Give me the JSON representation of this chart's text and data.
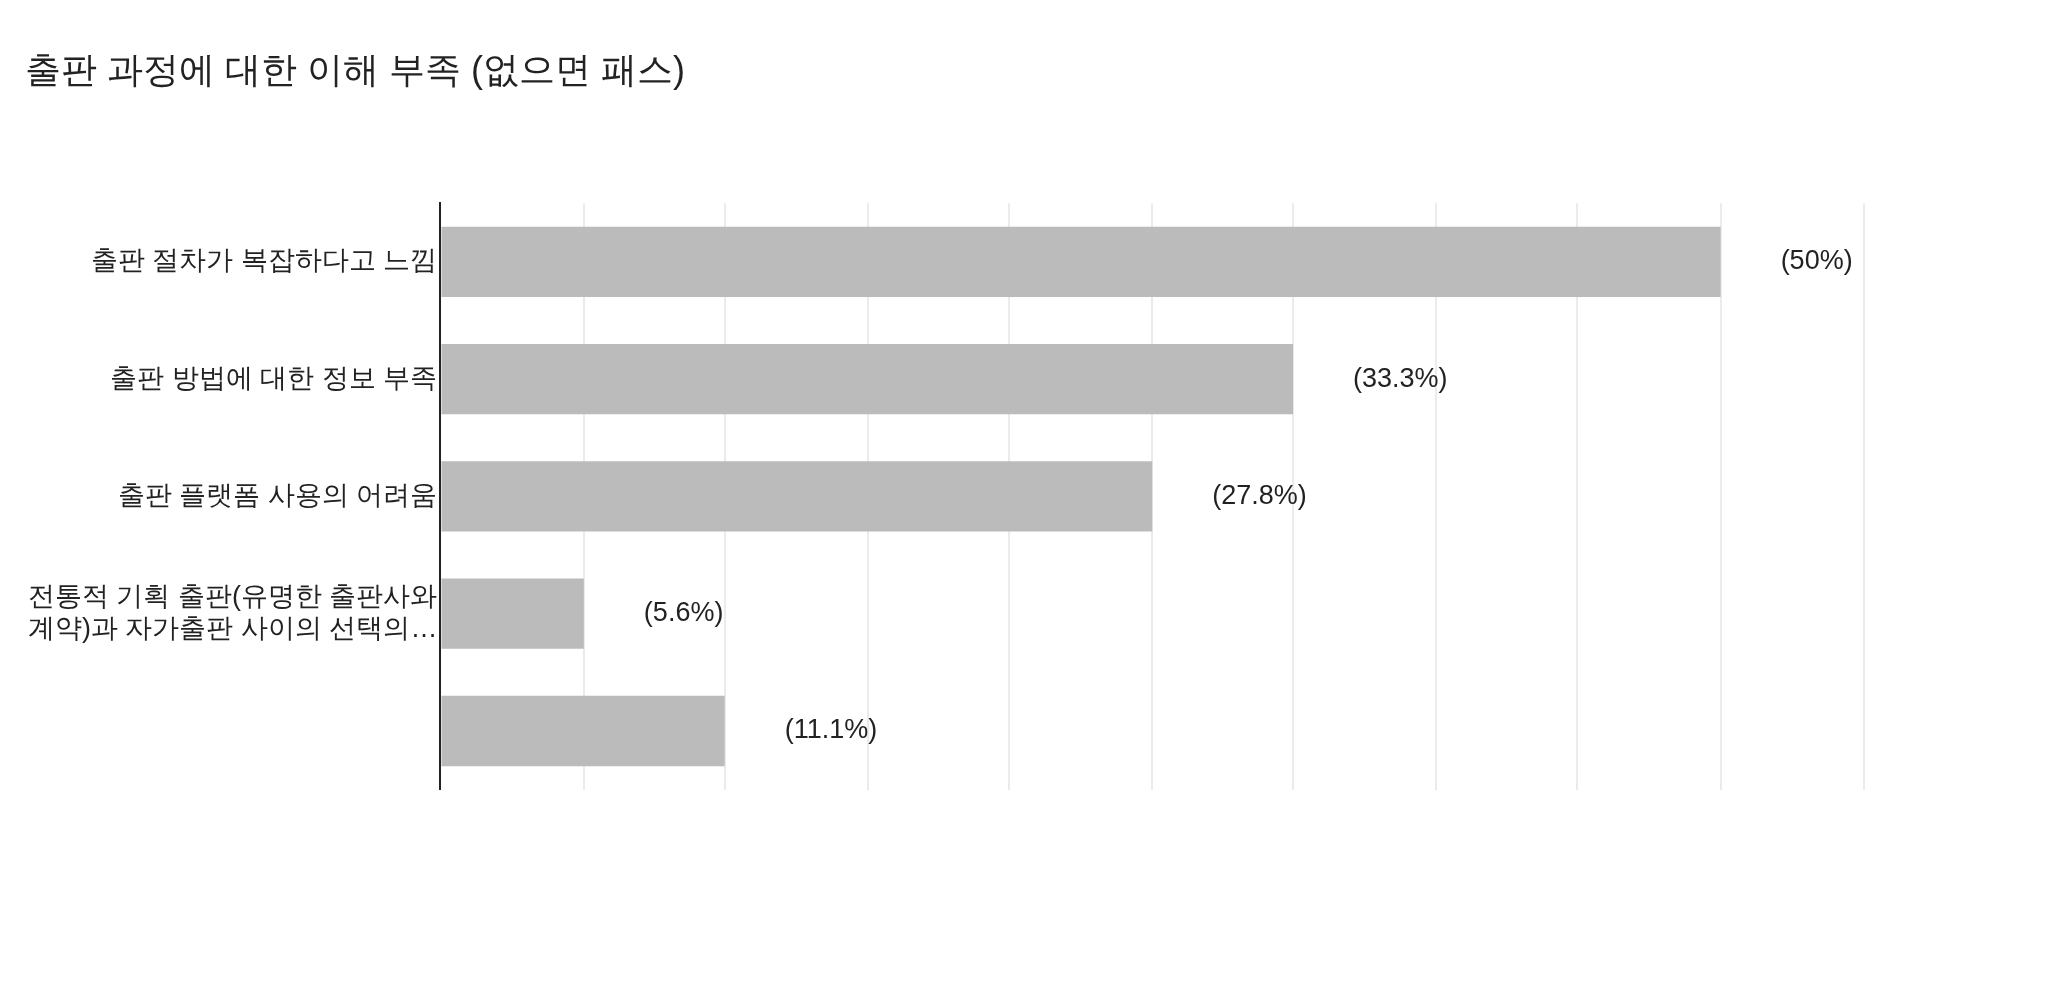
{
  "chart_data": {
    "type": "bar",
    "orientation": "horizontal",
    "title": "출판 과정에 대한 이해 부족 (없으면 패스)",
    "categories": [
      "출판 절차가 복잡하다고 느낌",
      "출판 방법에 대한 정보 부족",
      "출판 플랫폼 사용의 어려움",
      "전통적 기획 출판(유명한 출판사와 계약)과 자가출판 사이의 선택의…",
      null
    ],
    "values": [
      50,
      33.3,
      27.8,
      5.6,
      11.1
    ],
    "value_labels": [
      "(50%)",
      "(33.3%)",
      "(27.8%)",
      "(5.6%)",
      "(11.1%)"
    ],
    "color": "#bbbbbb",
    "xlim": [
      0,
      55.6
    ],
    "xticks": [
      {
        "value": 0,
        "label": null
      },
      {
        "value": 5.6,
        "label": null
      },
      {
        "value": 11.1,
        "label": null
      },
      {
        "value": 16.7,
        "label": null
      },
      {
        "value": 22.2,
        "label": null
      },
      {
        "value": 27.8,
        "label": null
      },
      {
        "value": 33.3,
        "label": null
      },
      {
        "value": 38.9,
        "label": null
      },
      {
        "value": 44.4,
        "label": null
      },
      {
        "value": 50,
        "label": null
      },
      {
        "value": 55.6,
        "label": null
      }
    ],
    "grid": "x",
    "legend": false
  }
}
